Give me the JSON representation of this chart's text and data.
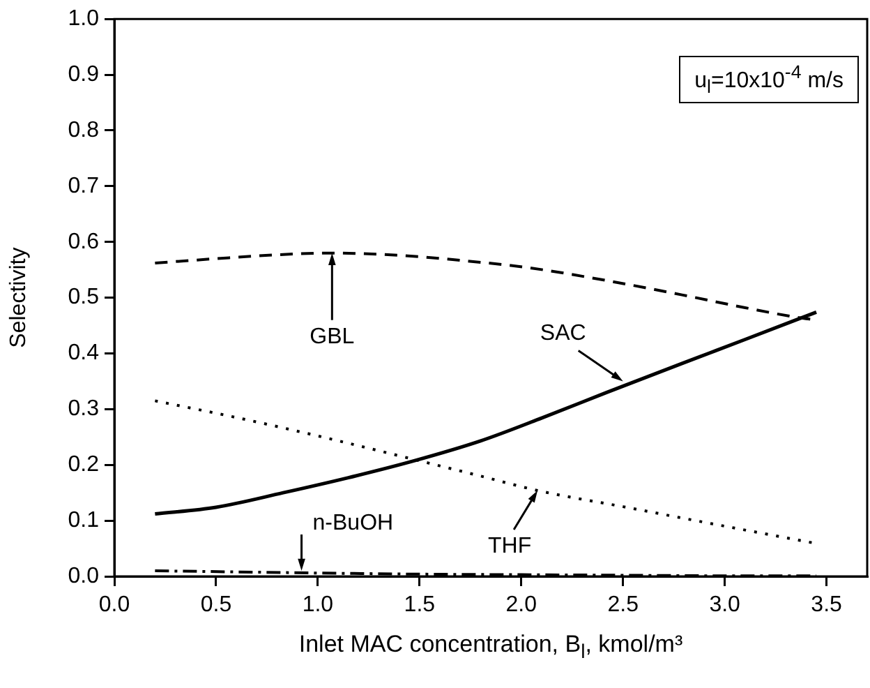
{
  "chart_data": {
    "type": "line",
    "xlabel": "Inlet MAC concentration, B$_{l}$, kmol/m³",
    "ylabel": "Selectivity",
    "xlim": [
      0,
      3.7
    ],
    "xticks": [
      {
        "value": 0,
        "label": "0.0"
      },
      0.5,
      {
        "value": 1,
        "label": "1.0"
      },
      1.5,
      {
        "value": 2,
        "label": "2.0"
      },
      2.5,
      {
        "value": 3,
        "label": "3.0"
      },
      3.5
    ],
    "ylim": [
      0,
      1
    ],
    "yticks": [
      {
        "value": 0,
        "label": "0.0"
      },
      0.1,
      0.2,
      0.3,
      0.4,
      0.5,
      0.6,
      0.7,
      0.8,
      0.9,
      {
        "value": 1,
        "label": "1.0"
      }
    ],
    "grid": false,
    "legend": false,
    "marker": "none",
    "series": [
      {
        "color": "#000000",
        "line_style": "dashed",
        "x": [
          0.2,
          0.5,
          0.8,
          1.07,
          1.4,
          1.7,
          2.05,
          2.4,
          2.79,
          3.1,
          3.35,
          3.45
        ],
        "values": [
          0.562,
          0.57,
          0.577,
          0.58,
          0.576,
          0.567,
          0.553,
          0.532,
          0.505,
          0.482,
          0.465,
          0.46
        ]
      },
      {
        "color": "#000000",
        "line_style": "solid",
        "x": [
          0.2,
          0.5,
          0.83,
          1.15,
          1.47,
          1.8,
          2.1,
          2.42,
          2.79,
          3.1,
          3.45
        ],
        "values": [
          0.112,
          0.124,
          0.15,
          0.177,
          0.207,
          0.243,
          0.284,
          0.33,
          0.382,
          0.425,
          0.474
        ]
      },
      {
        "color": "#000000",
        "line_style": "dotted",
        "x": [
          0.2,
          0.6,
          1.0,
          1.47,
          1.8,
          2.08,
          2.5,
          3.0,
          3.45
        ],
        "values": [
          0.315,
          0.285,
          0.252,
          0.21,
          0.18,
          0.154,
          0.125,
          0.09,
          0.059
        ]
      },
      {
        "color": "#000000",
        "line_style": "dashdot",
        "x": [
          0.2,
          0.6,
          1.0,
          1.5,
          2.0,
          2.5,
          3.0,
          3.45
        ],
        "values": [
          0.01,
          0.008,
          0.006,
          0.004,
          0.003,
          0.002,
          0.001,
          0.001
        ]
      }
    ],
    "annotations": [
      {
        "text": "GBL",
        "x": 1.07,
        "y": 0.58
      },
      {
        "text": "SAC",
        "x": 2.5,
        "y": 0.35
      },
      {
        "text": "THF",
        "x": 2.08,
        "y": 0.154
      },
      {
        "text": "n-BuOH",
        "x": 0.92,
        "y": 0.01
      },
      "u$_{l}$=10x10$^{-4}$ m/s"
    ]
  }
}
